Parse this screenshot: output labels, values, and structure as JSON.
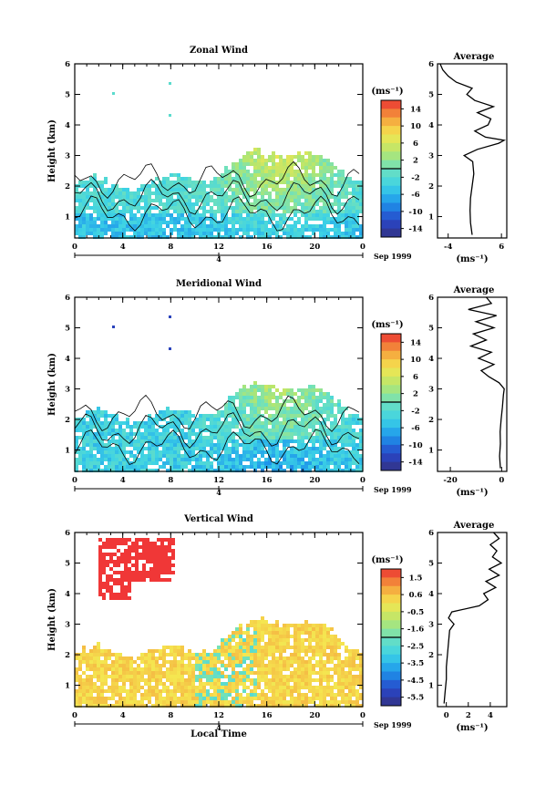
{
  "chart_data": [
    {
      "type": "heatmap",
      "title": "Zonal Wind",
      "xlabel": "",
      "ylabel": "Height (km)",
      "xlim": [
        0,
        24
      ],
      "ylim": [
        0.3,
        6
      ],
      "x_ticks": [
        "0",
        "4",
        "8",
        "12",
        "16",
        "20",
        "0"
      ],
      "y_ticks": [
        "1",
        "2",
        "3",
        "4",
        "5",
        "6"
      ],
      "date_bar_label": "4",
      "date_text": "Sep 1999",
      "colorbar": {
        "unit": "(ms⁻¹)",
        "ticks": [
          "14",
          "10",
          "6",
          "2",
          "-2",
          "-6",
          "-10",
          "-14"
        ],
        "range": [
          -16,
          16
        ]
      },
      "profile": {
        "title": "Average",
        "xlabel": "(ms⁻¹)",
        "x_ticks": [
          "-4",
          "6"
        ],
        "y_ticks": [
          "1",
          "2",
          "3",
          "4",
          "5",
          "6"
        ],
        "xlim": [
          -6,
          7
        ],
        "heights": [
          0.4,
          0.8,
          1.2,
          1.6,
          2.0,
          2.4,
          2.8,
          3.0,
          3.2,
          3.4,
          3.5,
          3.6,
          3.8,
          4.0,
          4.2,
          4.4,
          4.6,
          4.8,
          5.0,
          5.2,
          5.4,
          5.6,
          5.8,
          6.0
        ],
        "values": [
          0.5,
          0.2,
          0.1,
          0.2,
          0.5,
          0.8,
          0.6,
          -1.0,
          1.5,
          5.5,
          6.5,
          3.0,
          1.0,
          3.5,
          4.0,
          1.5,
          4.5,
          1.0,
          -0.5,
          0.5,
          -2.5,
          -4.0,
          -5.0,
          -5.5
        ]
      }
    },
    {
      "type": "heatmap",
      "title": "Meridional Wind",
      "xlabel": "",
      "ylabel": "Height (km)",
      "xlim": [
        0,
        24
      ],
      "ylim": [
        0.3,
        6
      ],
      "x_ticks": [
        "0",
        "4",
        "8",
        "12",
        "16",
        "20",
        "0"
      ],
      "y_ticks": [
        "1",
        "2",
        "3",
        "4",
        "5",
        "6"
      ],
      "date_bar_label": "4",
      "date_text": "Sep 1999",
      "colorbar": {
        "unit": "(ms⁻¹)",
        "ticks": [
          "14",
          "10",
          "6",
          "2",
          "-2",
          "-6",
          "-10",
          "-14"
        ],
        "range": [
          -16,
          16
        ]
      },
      "profile": {
        "title": "Average",
        "xlabel": "(ms⁻¹)",
        "x_ticks": [
          "-20",
          "0"
        ],
        "y_ticks": [
          "1",
          "2",
          "3",
          "4",
          "5",
          "6"
        ],
        "xlim": [
          -25,
          2
        ],
        "heights": [
          0.4,
          0.8,
          1.2,
          1.6,
          2.0,
          2.4,
          2.8,
          3.0,
          3.2,
          3.4,
          3.6,
          3.8,
          4.0,
          4.2,
          4.4,
          4.6,
          4.8,
          5.0,
          5.2,
          5.4,
          5.6,
          5.8,
          6.0
        ],
        "values": [
          -0.5,
          -0.8,
          -0.5,
          -0.6,
          -0.2,
          0.3,
          0.7,
          1.0,
          -1.0,
          -5.0,
          -8.0,
          -3.0,
          -9.0,
          -4.0,
          -12.0,
          -6.0,
          -11.0,
          -3.0,
          -10.0,
          -2.0,
          -13.0,
          -4.0,
          -6.0
        ]
      }
    },
    {
      "type": "heatmap",
      "title": "Vertical Wind",
      "xlabel": "Local Time",
      "ylabel": "Height (km)",
      "xlim": [
        0,
        24
      ],
      "ylim": [
        0.3,
        6
      ],
      "x_ticks": [
        "0",
        "4",
        "8",
        "12",
        "16",
        "20",
        "0"
      ],
      "y_ticks": [
        "1",
        "2",
        "3",
        "4",
        "5",
        "6"
      ],
      "date_bar_label": "4",
      "date_text": "Sep 1999",
      "colorbar": {
        "unit": "(ms⁻¹)",
        "ticks": [
          "1.5",
          "0.6",
          "-0.5",
          "-1.6",
          "-2.5",
          "-3.5",
          "-4.5",
          "-5.5"
        ],
        "range": [
          -6,
          2
        ]
      },
      "profile": {
        "title": "Average",
        "xlabel": "(ms⁻¹)",
        "x_ticks": [
          "0",
          "2",
          "4"
        ],
        "y_ticks": [
          "1",
          "2",
          "3",
          "4",
          "5",
          "6"
        ],
        "xlim": [
          -0.8,
          5.5
        ],
        "heights": [
          0.4,
          0.8,
          1.2,
          1.6,
          2.0,
          2.4,
          2.8,
          3.0,
          3.2,
          3.4,
          3.6,
          3.8,
          4.0,
          4.2,
          4.4,
          4.6,
          4.8,
          5.0,
          5.2,
          5.4,
          5.6,
          5.8,
          6.0
        ],
        "values": [
          -0.2,
          -0.1,
          0.0,
          0.0,
          0.1,
          0.2,
          0.3,
          0.7,
          0.2,
          0.5,
          3.0,
          3.8,
          3.4,
          4.5,
          3.6,
          4.8,
          3.9,
          5.0,
          4.2,
          4.6,
          4.0,
          4.8,
          4.3
        ]
      }
    }
  ]
}
